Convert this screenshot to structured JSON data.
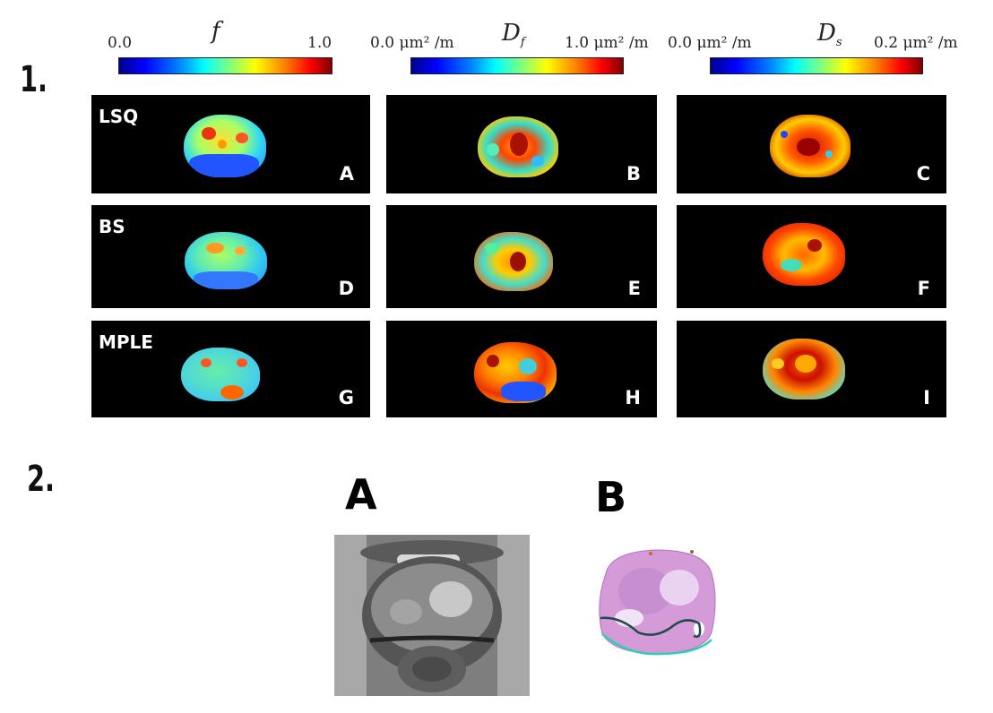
{
  "section1": {
    "label": "1."
  },
  "section2": {
    "label": "2."
  },
  "colorbars": [
    {
      "symbol": "f",
      "subscript": "",
      "min_label": "0.0",
      "max_label": "1.0"
    },
    {
      "symbol": "D",
      "subscript": "f",
      "min_label": "0.0 μm² /m",
      "max_label": "1.0 μm² /m"
    },
    {
      "symbol": "D",
      "subscript": "s",
      "min_label": "0.0 μm² /m",
      "max_label": "0.2 μm² /m"
    }
  ],
  "methods": [
    "LSQ",
    "BS",
    "MPLE"
  ],
  "panel_letters": [
    "A",
    "B",
    "C",
    "D",
    "E",
    "F",
    "G",
    "H",
    "I"
  ],
  "figure2": {
    "label_a": "A",
    "label_b": "B"
  }
}
